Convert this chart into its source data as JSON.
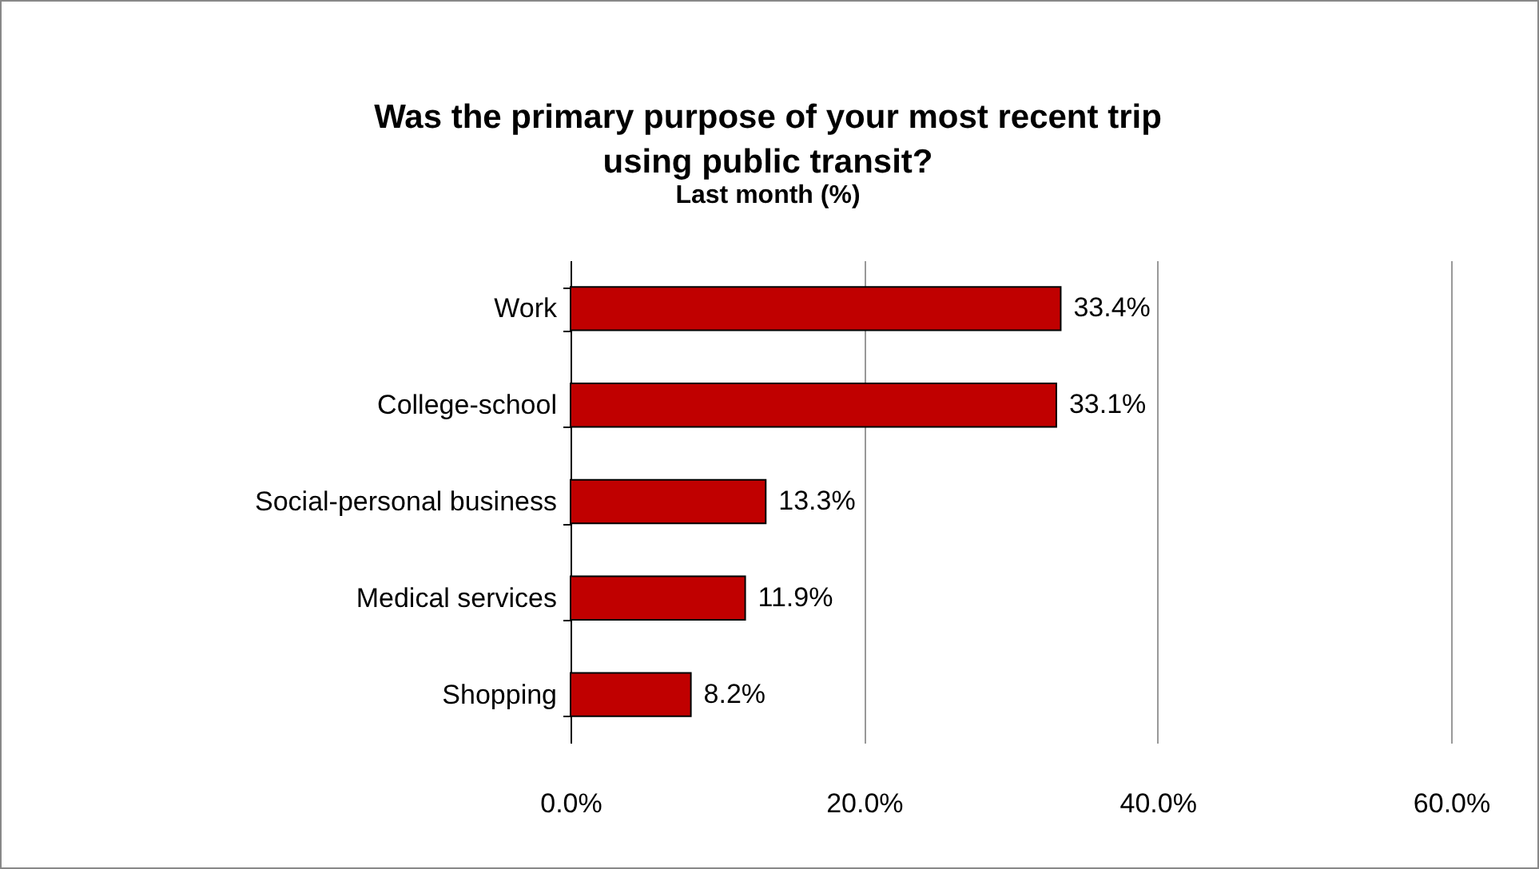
{
  "chart_data": {
    "type": "bar",
    "orientation": "horizontal",
    "title": "Was the primary purpose of your most recent trip using public transit?",
    "subtitle": "Last month (%)",
    "categories": [
      "Work",
      "College-school",
      "Social-personal business",
      "Medical services",
      "Shopping"
    ],
    "values": [
      33.4,
      33.1,
      13.3,
      11.9,
      8.2
    ],
    "value_labels": [
      "33.4%",
      "33.1%",
      "13.3%",
      "11.9%",
      "8.2%"
    ],
    "color": "#c00000",
    "xlim": [
      0,
      60
    ],
    "xticks": [
      {
        "value": 0,
        "label": "0.0%"
      },
      {
        "value": 20,
        "label": "20.0%"
      },
      {
        "value": 40,
        "label": "40.0%"
      },
      {
        "value": 60,
        "label": "60.0%"
      }
    ],
    "grid": "x"
  }
}
